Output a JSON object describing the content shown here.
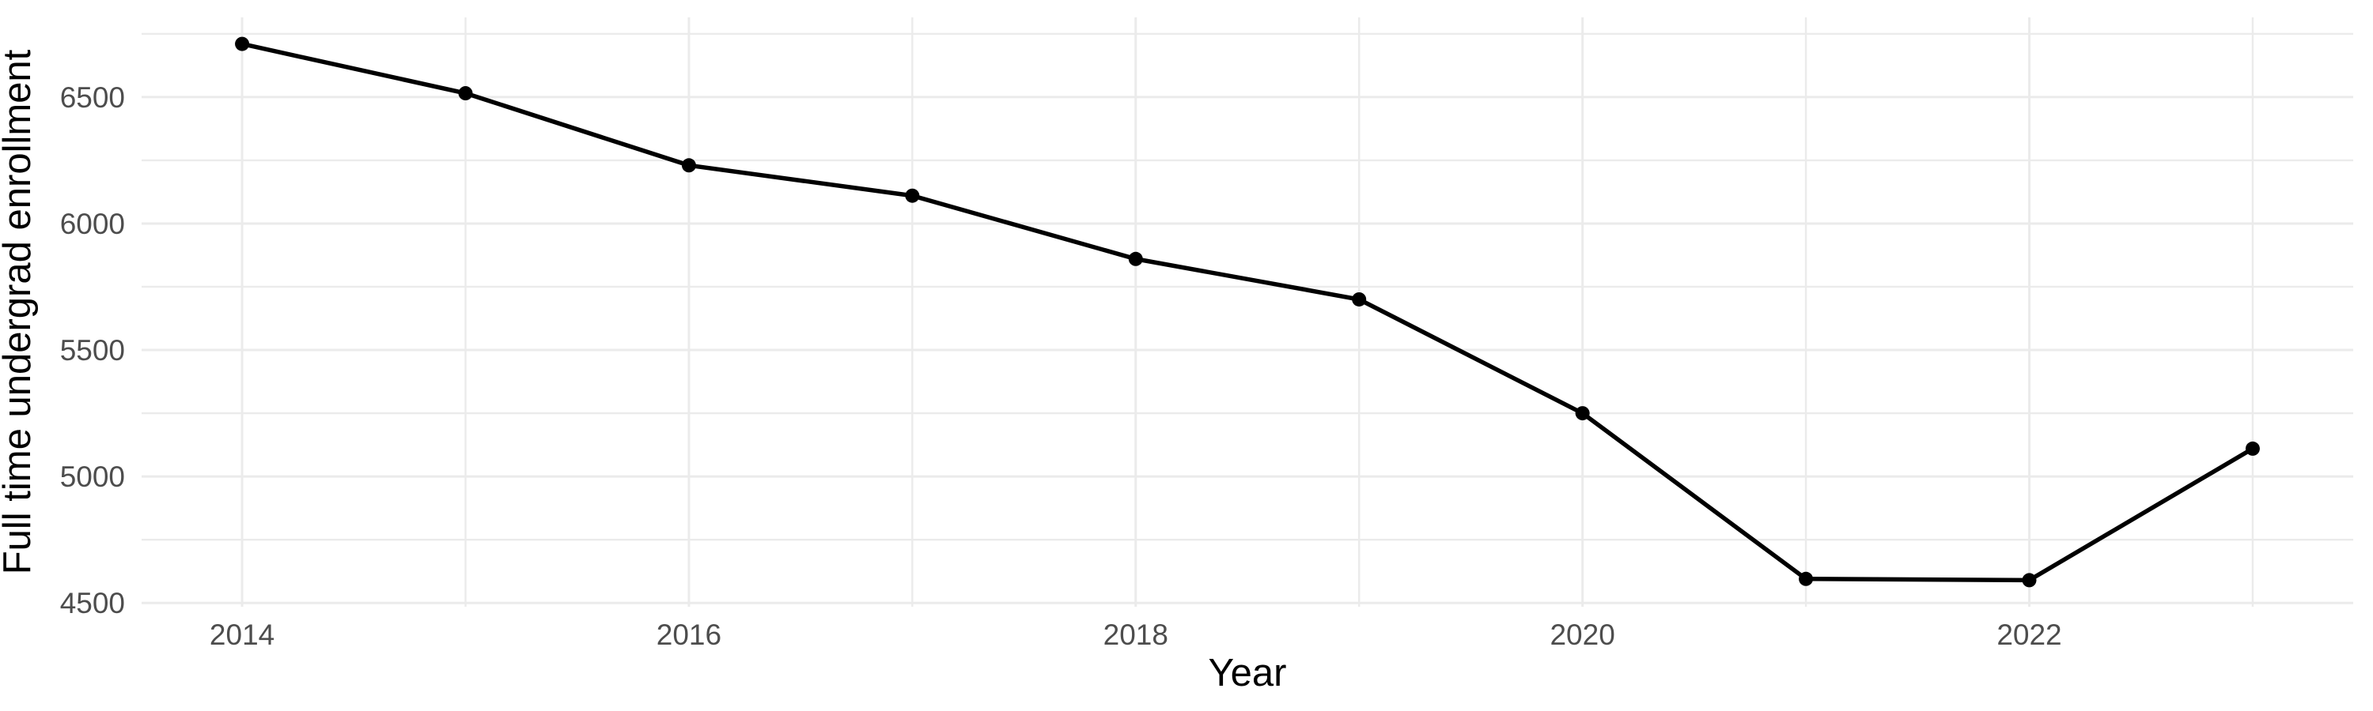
{
  "chart_data": {
    "type": "line",
    "title": "",
    "xlabel": "Year",
    "ylabel": "Full time undergrad enrollment",
    "series": [
      {
        "name": "Full time undergrad enrollment",
        "x": [
          2014,
          2015,
          2016,
          2017,
          2018,
          2019,
          2020,
          2021,
          2022,
          2023
        ],
        "values": [
          6710,
          6515,
          6230,
          6110,
          5860,
          5700,
          5250,
          4595,
          4590,
          5110
        ]
      }
    ],
    "xlim": [
      2013.55,
      2023.45
    ],
    "ylim": [
      4485,
      6815
    ],
    "x_major_ticks": [
      2014,
      2016,
      2018,
      2020,
      2022
    ],
    "x_tick_labels": [
      "2014",
      "2016",
      "2018",
      "2020",
      "2022"
    ],
    "x_minor_gridlines": [
      2015,
      2017,
      2019,
      2021,
      2023
    ],
    "y_major_ticks": [
      4500,
      5000,
      5500,
      6000,
      6500
    ],
    "y_tick_labels": [
      "4500",
      "5000",
      "5500",
      "6000",
      "6500"
    ],
    "y_minor_gridlines": [
      4750,
      5250,
      5750,
      6250,
      6750
    ],
    "grid": true,
    "legend_position": "none",
    "style": {
      "background_color": "#FFFFFF",
      "line_color": "#000000",
      "point_color": "#000000",
      "major_grid_color": "#EBEBEB",
      "minor_grid_color": "#EBEBEB",
      "tick_label_color": "#4D4D4D",
      "axis_title_color": "#000000"
    }
  }
}
